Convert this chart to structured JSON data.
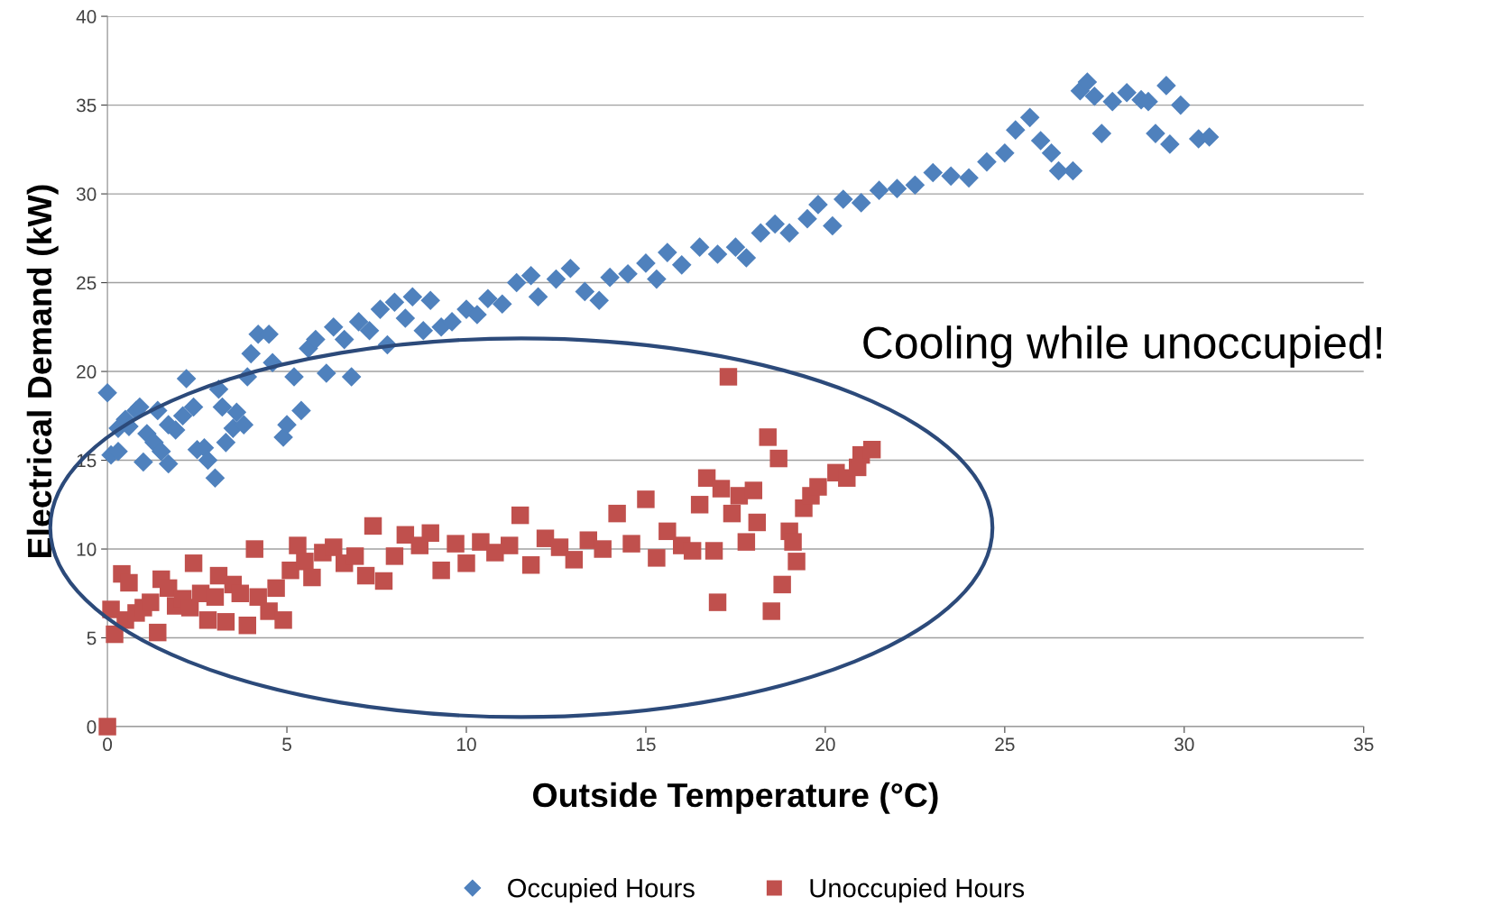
{
  "chart_data": {
    "type": "scatter",
    "xlabel": "Outside Temperature (°C)",
    "ylabel": "Electrical Demand (kW)",
    "xlim": [
      0,
      35
    ],
    "xticks": [
      0,
      5,
      10,
      15,
      20,
      25,
      30,
      35
    ],
    "ylim": [
      0,
      40
    ],
    "yticks": [
      0,
      5,
      10,
      15,
      20,
      25,
      30,
      35,
      40
    ],
    "grid": "y",
    "legend": "bottom",
    "annotations": [
      "Cooling while unoccupied!"
    ],
    "series": [
      {
        "name": "Occupied Hours",
        "color": "#4f81bd",
        "marker": "diamond",
        "x": [
          0,
          0.1,
          0.3,
          0.3,
          0.5,
          0.6,
          0.8,
          0.9,
          1,
          1.1,
          1.3,
          1.4,
          1.5,
          1.7,
          1.7,
          1.9,
          2.1,
          2.2,
          2.4,
          2.5,
          2.7,
          2.8,
          3,
          3.1,
          3.2,
          3.3,
          3.5,
          3.6,
          3.8,
          3.9,
          4,
          4.2,
          4.5,
          4.6,
          4.9,
          5,
          5.2,
          5.4,
          5.6,
          5.8,
          6.1,
          6.3,
          6.6,
          6.8,
          7,
          7.3,
          7.6,
          7.8,
          8,
          8.3,
          8.5,
          8.8,
          9,
          9.3,
          9.6,
          10,
          10.3,
          10.6,
          11,
          11.4,
          11.8,
          12,
          12.5,
          12.9,
          13.3,
          13.7,
          14,
          14.5,
          15,
          15.3,
          15.6,
          16,
          16.5,
          17,
          17.5,
          17.8,
          18.2,
          18.6,
          19,
          19.5,
          19.8,
          20.2,
          20.5,
          21,
          21.5,
          22,
          22.5,
          23,
          23.5,
          24,
          24.5,
          25,
          25.3,
          25.7,
          26,
          26.3,
          26.5,
          26.9,
          27.1,
          27.3,
          27.5,
          27.7,
          28,
          28.4,
          28.8,
          29,
          29.2,
          29.5,
          29.6,
          29.9,
          30.4,
          30.7
        ],
        "values": [
          18.8,
          15.3,
          15.5,
          16.8,
          17.3,
          16.9,
          17.8,
          18,
          14.9,
          16.5,
          16,
          17.8,
          15.5,
          17,
          14.8,
          16.7,
          17.5,
          19.6,
          18,
          15.6,
          15.7,
          15,
          14,
          19,
          18,
          16,
          16.8,
          17.7,
          17,
          19.7,
          21,
          22.1,
          22.1,
          20.5,
          16.3,
          17,
          19.7,
          17.8,
          21.3,
          21.8,
          19.9,
          22.5,
          21.8,
          19.7,
          22.8,
          22.3,
          23.5,
          21.5,
          23.9,
          23,
          24.2,
          22.3,
          24,
          22.5,
          22.8,
          23.5,
          23.2,
          24.1,
          23.8,
          25,
          25.4,
          24.2,
          25.2,
          25.8,
          24.5,
          24,
          25.3,
          25.5,
          26.1,
          25.2,
          26.7,
          26,
          27,
          26.6,
          27,
          26.4,
          27.8,
          28.3,
          27.8,
          28.6,
          29.4,
          28.2,
          29.7,
          29.5,
          30.2,
          30.3,
          30.5,
          31.2,
          31,
          30.9,
          31.8,
          32.3,
          33.6,
          34.3,
          33,
          32.3,
          31.3,
          31.3,
          35.8,
          36.3,
          35.5,
          33.4,
          35.2,
          35.7,
          35.3,
          35.2,
          33.4,
          36.1,
          32.8,
          35,
          33.1,
          33.2
        ]
      },
      {
        "name": "Unoccupied Hours",
        "color": "#c0504d",
        "marker": "square",
        "x": [
          0,
          0.1,
          0.2,
          0.4,
          0.5,
          0.6,
          0.8,
          1,
          1.2,
          1.4,
          1.5,
          1.7,
          1.9,
          2.1,
          2.3,
          2.4,
          2.6,
          2.8,
          3,
          3.1,
          3.3,
          3.5,
          3.7,
          3.9,
          4.1,
          4.2,
          4.5,
          4.7,
          4.9,
          5.1,
          5.3,
          5.5,
          5.7,
          6,
          6.3,
          6.6,
          6.9,
          7.2,
          7.4,
          7.7,
          8,
          8.3,
          8.7,
          9,
          9.3,
          9.7,
          10,
          10.4,
          10.8,
          11.2,
          11.5,
          11.8,
          12.2,
          12.6,
          13,
          13.4,
          13.8,
          14.2,
          14.6,
          15,
          15.3,
          15.6,
          16,
          16.3,
          16.5,
          16.7,
          16.9,
          17,
          17.1,
          17.3,
          17.4,
          17.6,
          17.8,
          18,
          18.1,
          18.4,
          18.5,
          18.7,
          18.8,
          19,
          19.1,
          19.2,
          19.4,
          19.6,
          19.8,
          20.3,
          20.6,
          20.9,
          21,
          21.3
        ],
        "values": [
          0,
          6.6,
          5.2,
          8.6,
          6,
          8.1,
          6.4,
          6.7,
          7,
          5.3,
          8.3,
          7.8,
          6.8,
          7.2,
          6.7,
          9.2,
          7.5,
          6,
          7.3,
          8.5,
          5.9,
          8,
          7.5,
          5.7,
          10,
          7.3,
          6.5,
          7.8,
          6,
          8.8,
          10.2,
          9.3,
          8.4,
          9.8,
          10.1,
          9.2,
          9.6,
          8.5,
          11.3,
          8.2,
          9.6,
          10.8,
          10.2,
          10.9,
          8.8,
          10.3,
          9.2,
          10.4,
          9.8,
          10.2,
          11.9,
          9.1,
          10.6,
          10.1,
          9.4,
          10.5,
          10,
          12,
          10.3,
          12.8,
          9.5,
          11,
          10.2,
          9.9,
          12.5,
          14,
          9.9,
          7,
          13.4,
          19.7,
          12,
          13,
          10.4,
          13.3,
          11.5,
          16.3,
          6.5,
          15.1,
          8,
          11,
          10.4,
          9.3,
          12.3,
          13,
          13.5,
          14.3,
          14,
          14.6,
          15.3,
          15.6
        ]
      }
    ]
  }
}
